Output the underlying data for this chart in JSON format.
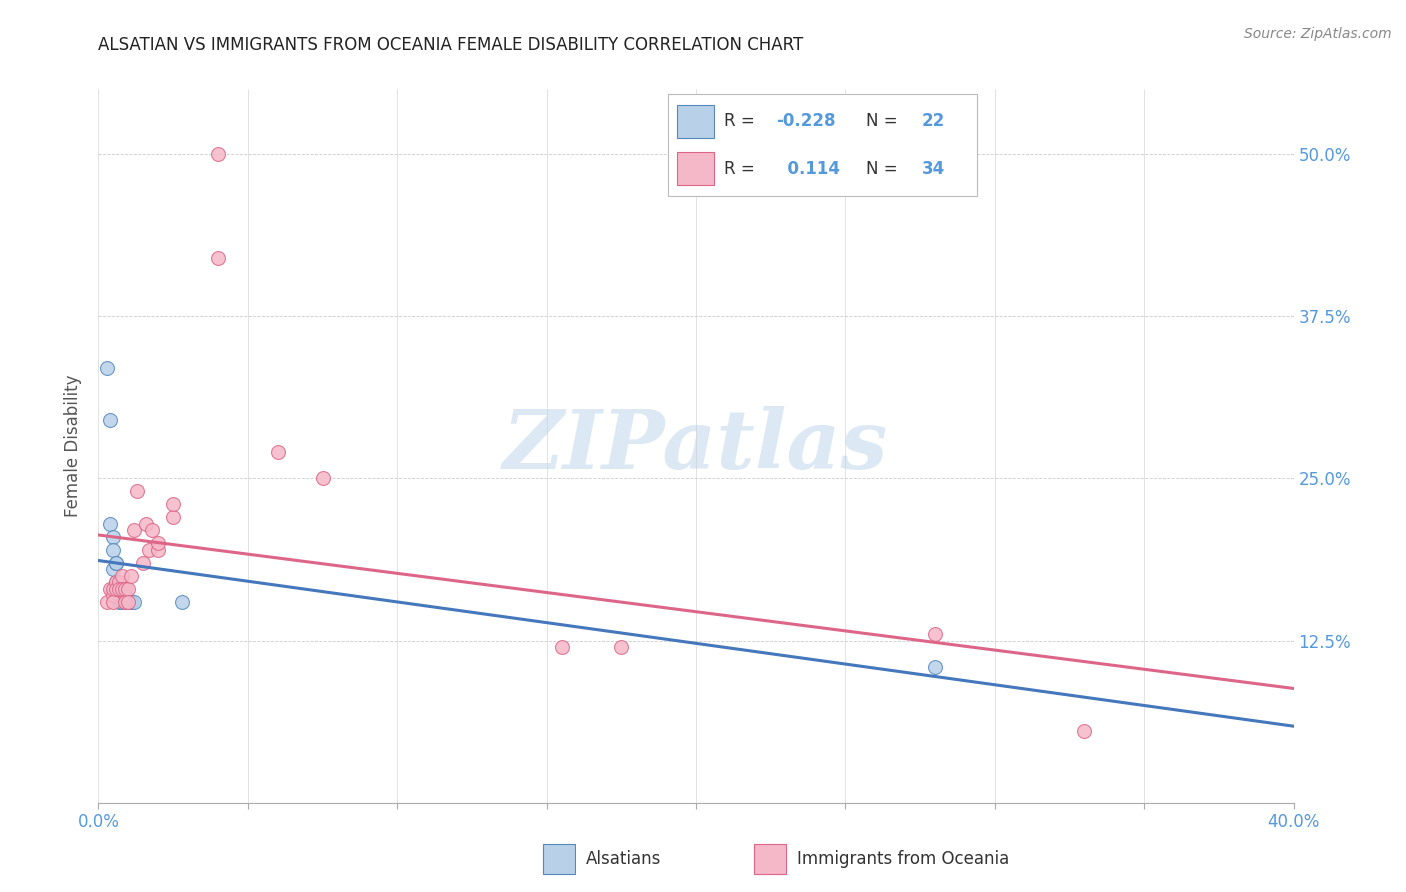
{
  "title": "ALSATIAN VS IMMIGRANTS FROM OCEANIA FEMALE DISABILITY CORRELATION CHART",
  "source": "Source: ZipAtlas.com",
  "ylabel": "Female Disability",
  "xlim": [
    0.0,
    0.4
  ],
  "ylim": [
    0.0,
    0.55
  ],
  "xtick_positions": [
    0.0,
    0.05,
    0.1,
    0.15,
    0.2,
    0.25,
    0.3,
    0.35,
    0.4
  ],
  "xtick_labels": [
    "0.0%",
    "",
    "",
    "",
    "",
    "",
    "",
    "",
    "40.0%"
  ],
  "ytick_positions": [
    0.0,
    0.125,
    0.25,
    0.375,
    0.5
  ],
  "ytick_labels_right": [
    "",
    "12.5%",
    "25.0%",
    "37.5%",
    "50.0%"
  ],
  "legend_R1": "-0.228",
  "legend_N1": "22",
  "legend_R2": "0.114",
  "legend_N2": "34",
  "blue_fill": "#b8d0e8",
  "blue_edge": "#5588bb",
  "pink_fill": "#f5b8c8",
  "pink_edge": "#dd6688",
  "blue_line": "#4477bb",
  "pink_line": "#dd6688",
  "title_color": "#222222",
  "ylabel_color": "#555555",
  "tick_color": "#5599dd",
  "source_color": "#888888",
  "watermark_text": "ZIPatlas",
  "watermark_color": "#dde8f5",
  "grid_color": "#cccccc",
  "alsatians_x": [
    0.003,
    0.004,
    0.004,
    0.005,
    0.005,
    0.005,
    0.006,
    0.006,
    0.006,
    0.006,
    0.007,
    0.007,
    0.008,
    0.008,
    0.009,
    0.009,
    0.01,
    0.01,
    0.011,
    0.012,
    0.028,
    0.28
  ],
  "alsatians_y": [
    0.335,
    0.295,
    0.215,
    0.205,
    0.195,
    0.18,
    0.185,
    0.185,
    0.17,
    0.165,
    0.165,
    0.155,
    0.165,
    0.155,
    0.155,
    0.16,
    0.155,
    0.155,
    0.155,
    0.155,
    0.155,
    0.105
  ],
  "oceania_x": [
    0.003,
    0.004,
    0.005,
    0.005,
    0.005,
    0.006,
    0.006,
    0.007,
    0.007,
    0.008,
    0.008,
    0.009,
    0.009,
    0.01,
    0.01,
    0.011,
    0.012,
    0.013,
    0.015,
    0.016,
    0.017,
    0.018,
    0.02,
    0.02,
    0.025,
    0.025,
    0.04,
    0.04,
    0.06,
    0.075,
    0.155,
    0.175,
    0.28,
    0.33
  ],
  "oceania_y": [
    0.155,
    0.165,
    0.16,
    0.165,
    0.155,
    0.17,
    0.165,
    0.17,
    0.165,
    0.175,
    0.165,
    0.165,
    0.155,
    0.165,
    0.155,
    0.175,
    0.21,
    0.24,
    0.185,
    0.215,
    0.195,
    0.21,
    0.195,
    0.2,
    0.22,
    0.23,
    0.42,
    0.5,
    0.27,
    0.25,
    0.12,
    0.12,
    0.13,
    0.055
  ],
  "marker_size": 100
}
